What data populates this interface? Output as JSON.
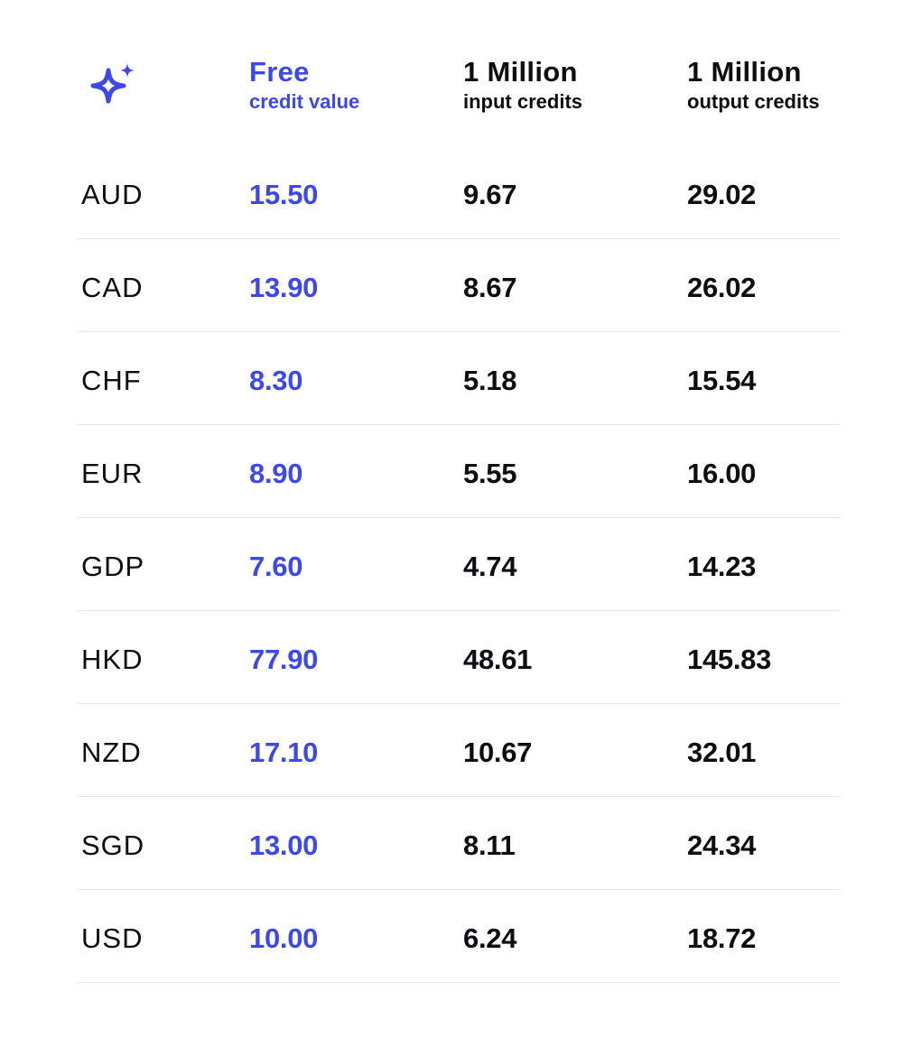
{
  "brand": {
    "accent_color": "#3d48e8",
    "logo_icon": "sparkle-icon"
  },
  "header": {
    "free": {
      "title": "Free",
      "subtitle": "credit value"
    },
    "input": {
      "title": "1 Million",
      "subtitle": "input credits"
    },
    "output": {
      "title": "1 Million",
      "subtitle": "output credits"
    }
  },
  "rows": [
    {
      "currency": "AUD",
      "free": "15.50",
      "input": "9.67",
      "output": "29.02"
    },
    {
      "currency": "CAD",
      "free": "13.90",
      "input": "8.67",
      "output": "26.02"
    },
    {
      "currency": "CHF",
      "free": "8.30",
      "input": "5.18",
      "output": "15.54"
    },
    {
      "currency": "EUR",
      "free": "8.90",
      "input": "5.55",
      "output": "16.00"
    },
    {
      "currency": "GDP",
      "free": "7.60",
      "input": "4.74",
      "output": "14.23"
    },
    {
      "currency": "HKD",
      "free": "77.90",
      "input": "48.61",
      "output": "145.83"
    },
    {
      "currency": "NZD",
      "free": "17.10",
      "input": "10.67",
      "output": "32.01"
    },
    {
      "currency": "SGD",
      "free": "13.00",
      "input": "8.11",
      "output": "24.34"
    },
    {
      "currency": "USD",
      "free": "10.00",
      "input": "6.24",
      "output": "18.72"
    }
  ]
}
